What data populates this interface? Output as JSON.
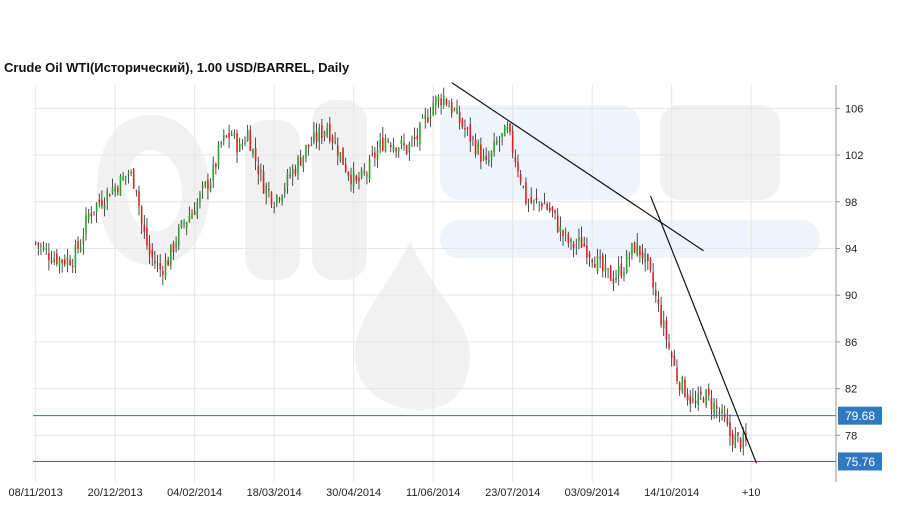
{
  "chart_data": {
    "type": "candlestick",
    "title": "Crude Oil WTI(Исторический), 1.00 USD/BARREL, Daily",
    "ylim": [
      74,
      108
    ],
    "y_ticks": [
      78,
      82,
      86,
      90,
      94,
      98,
      102,
      106
    ],
    "x_tick_labels": [
      "08/11/2013",
      "20/12/2013",
      "04/02/2014",
      "18/03/2014",
      "30/04/2014",
      "11/06/2014",
      "23/07/2014",
      "03/09/2014",
      "14/10/2014",
      "+10"
    ],
    "x_tick_positions": [
      0,
      30,
      60,
      90,
      120,
      150,
      180,
      210,
      240,
      270
    ],
    "x_range": [
      -1,
      302
    ],
    "grid": true,
    "colors": {
      "up": "#2e9e2e",
      "down": "#e02020",
      "level_line": "#1a7fa0",
      "level_box": "#2e79c0",
      "trendline": "#111111",
      "grid": "#e6e6e6"
    },
    "close_anchors": [
      [
        0,
        94.5
      ],
      [
        5,
        93.5
      ],
      [
        10,
        93
      ],
      [
        14,
        93.2
      ],
      [
        17,
        94.5
      ],
      [
        20,
        97
      ],
      [
        24,
        98
      ],
      [
        28,
        99
      ],
      [
        31,
        99.5
      ],
      [
        35,
        100.5
      ],
      [
        38,
        99.5
      ],
      [
        40,
        96
      ],
      [
        43,
        93.5
      ],
      [
        47,
        92.2
      ],
      [
        50,
        93
      ],
      [
        53,
        94.8
      ],
      [
        56,
        96.2
      ],
      [
        60,
        97.5
      ],
      [
        63,
        98.8
      ],
      [
        67,
        100.5
      ],
      [
        70,
        103
      ],
      [
        74,
        103.8
      ],
      [
        77,
        102.5
      ],
      [
        80,
        104
      ],
      [
        82,
        102.3
      ],
      [
        86,
        99.5
      ],
      [
        90,
        98.2
      ],
      [
        94,
        99.5
      ],
      [
        98,
        101
      ],
      [
        102,
        102.5
      ],
      [
        106,
        103.5
      ],
      [
        110,
        104.5
      ],
      [
        113,
        103
      ],
      [
        117,
        101
      ],
      [
        121,
        99.5
      ],
      [
        125,
        100.5
      ],
      [
        128,
        102
      ],
      [
        132,
        103.5
      ],
      [
        136,
        103
      ],
      [
        140,
        102.5
      ],
      [
        144,
        103.5
      ],
      [
        147,
        105
      ],
      [
        150,
        106.5
      ],
      [
        154,
        107
      ],
      [
        157,
        106
      ],
      [
        161,
        104.5
      ],
      [
        164,
        103.5
      ],
      [
        167,
        102.5
      ],
      [
        170,
        101
      ],
      [
        174,
        103
      ],
      [
        178,
        104
      ],
      [
        182,
        101
      ],
      [
        185,
        98.2
      ],
      [
        188,
        97.8
      ],
      [
        191,
        98
      ],
      [
        195,
        97
      ],
      [
        198,
        95.5
      ],
      [
        202,
        94.2
      ],
      [
        206,
        94.5
      ],
      [
        210,
        93.5
      ],
      [
        214,
        92
      ],
      [
        218,
        91.5
      ],
      [
        222,
        92.5
      ],
      [
        226,
        94.2
      ],
      [
        229,
        93.5
      ],
      [
        232,
        91.5
      ],
      [
        236,
        88
      ],
      [
        239,
        85.5
      ],
      [
        242,
        83
      ],
      [
        246,
        81.5
      ],
      [
        249,
        80.5
      ],
      [
        252,
        81.5
      ],
      [
        256,
        80.5
      ],
      [
        259,
        79.5
      ],
      [
        262,
        78
      ],
      [
        265,
        77.5
      ],
      [
        268,
        77.3
      ]
    ],
    "trendlines": [
      {
        "from": [
          157,
          108.2
        ],
        "to": [
          252,
          93.8
        ]
      },
      {
        "from": [
          232,
          98.5
        ],
        "to": [
          272,
          75.6
        ]
      }
    ],
    "levels": [
      79.68,
      75.76
    ],
    "level_labels": [
      "79.68",
      "75.76"
    ]
  }
}
